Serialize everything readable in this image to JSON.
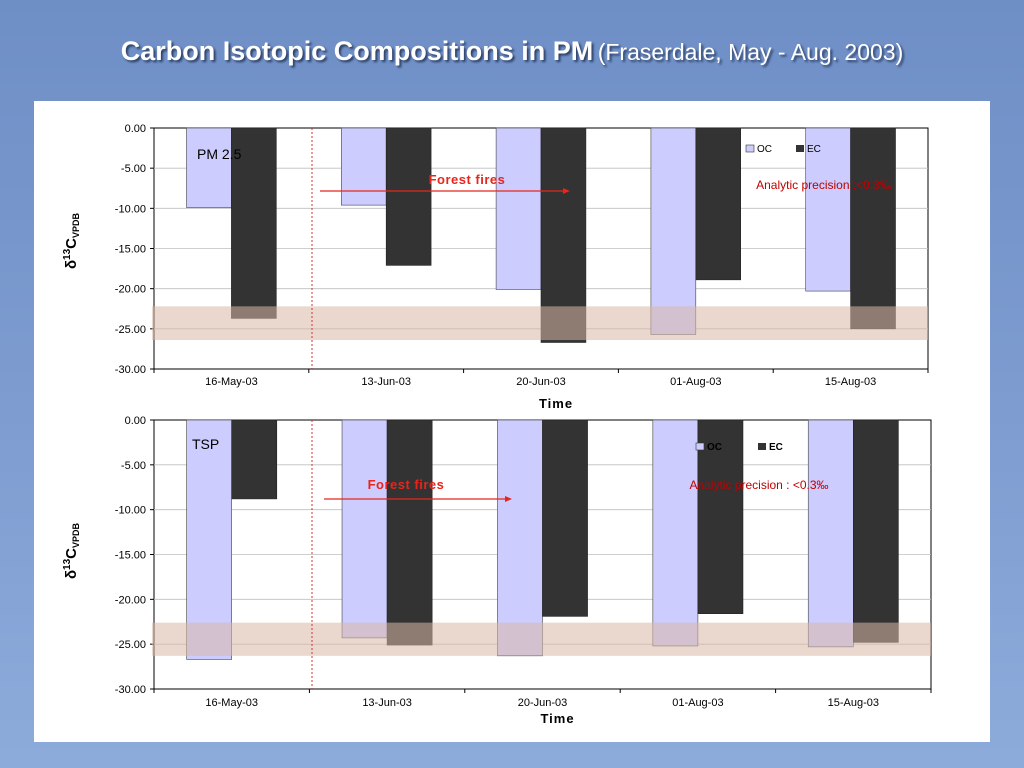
{
  "slide": {
    "title_main": "Carbon Isotopic Compositions in PM",
    "title_sub": "(Fraserdale, May - Aug. 2003)"
  },
  "colors": {
    "oc_fill": "#ccccff",
    "ec_fill": "#333333",
    "band_fill": "#d9b8a8",
    "forest_fire": "#e8251c",
    "divider": "#d93030"
  },
  "chart_data": [
    {
      "type": "bar",
      "panel_label": "PM 2.5",
      "categories": [
        "16-May-03",
        "13-Jun-03",
        "20-Jun-03",
        "01-Aug-03",
        "15-Aug-03"
      ],
      "series": [
        {
          "name": "OC",
          "values": [
            -9.9,
            -9.6,
            -20.1,
            -25.7,
            -20.3
          ]
        },
        {
          "name": "EC",
          "values": [
            -23.7,
            -17.1,
            -26.7,
            -18.9,
            -25.0
          ]
        }
      ],
      "ylim": [
        -30,
        0
      ],
      "yticks": [
        "0.00",
        "-5.00",
        "-10.00",
        "-15.00",
        "-20.00",
        "-25.00",
        "-30.00"
      ],
      "ylabel": {
        "delta": "δ",
        "sup": "13",
        "main": "C",
        "sub": "VPDB"
      },
      "xlabel": "Time",
      "band": [
        -26.4,
        -22.2
      ],
      "annotations": {
        "forest_fires": "Forest fires",
        "precision": "Analytic precision :<0.3‰"
      },
      "legend": {
        "placement": "top-right"
      }
    },
    {
      "type": "bar",
      "panel_label": "TSP",
      "categories": [
        "16-May-03",
        "13-Jun-03",
        "20-Jun-03",
        "01-Aug-03",
        "15-Aug-03"
      ],
      "series": [
        {
          "name": "OC",
          "values": [
            -26.7,
            -24.3,
            -26.3,
            -25.2,
            -25.3
          ]
        },
        {
          "name": "EC",
          "values": [
            -8.8,
            -25.1,
            -21.9,
            -21.6,
            -24.8
          ]
        }
      ],
      "ylim": [
        -30,
        0
      ],
      "yticks": [
        "0.00",
        "-5.00",
        "-10.00",
        "-15.00",
        "-20.00",
        "-25.00",
        "-30.00"
      ],
      "ylabel": {
        "delta": "δ",
        "sup": "13",
        "main": "C",
        "sub": "VPDB"
      },
      "xlabel": "Time",
      "band": [
        -26.3,
        -22.6
      ],
      "annotations": {
        "forest_fires": "Forest fires",
        "precision": "Analytic precision : <0.3‰"
      },
      "legend": {
        "placement": "top-right"
      }
    }
  ]
}
